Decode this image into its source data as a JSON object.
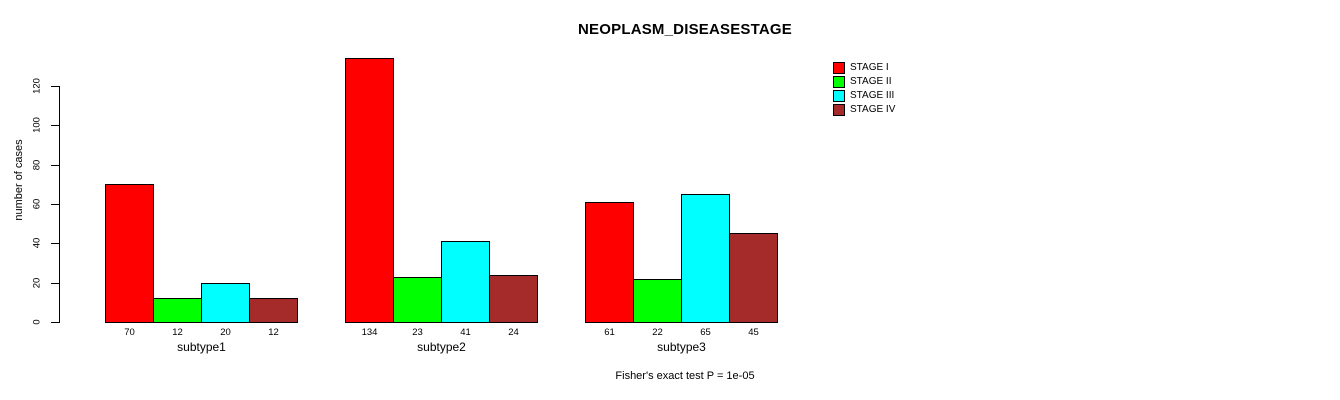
{
  "chart_data": {
    "type": "bar",
    "title": "NEOPLASM_DISEASESTAGE",
    "ylabel": "number of cases",
    "xlabel": "",
    "categories": [
      "subtype1",
      "subtype2",
      "subtype3"
    ],
    "series": [
      {
        "name": "STAGE I",
        "color": "#FF0000",
        "values": [
          70,
          134,
          61
        ]
      },
      {
        "name": "STAGE II",
        "color": "#00FF00",
        "values": [
          12,
          23,
          22
        ]
      },
      {
        "name": "STAGE III",
        "color": "#00FFFF",
        "values": [
          20,
          41,
          65
        ]
      },
      {
        "name": "STAGE IV",
        "color": "#A52A2A",
        "values": [
          12,
          24,
          45
        ]
      }
    ],
    "yticks": [
      0,
      20,
      40,
      60,
      80,
      100,
      120
    ],
    "ylim": [
      0,
      134
    ],
    "bar_value_labels": [
      [
        "70",
        "12",
        "20",
        "12"
      ],
      [
        "134",
        "23",
        "41",
        "24"
      ],
      [
        "61",
        "22",
        "65",
        "45"
      ]
    ],
    "legend_position": "top-right",
    "grid": false,
    "annotation": "Fisher's exact test P = 1e-05"
  }
}
